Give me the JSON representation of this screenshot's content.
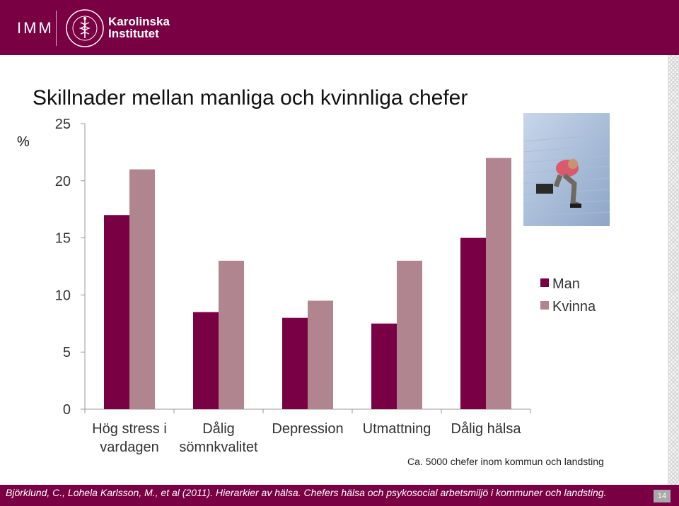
{
  "header": {
    "dept": "IMM",
    "org_line1": "Karolinska",
    "org_line2": "Institutet",
    "seal_text": "KAROLINSKA INSTITUTET ANNO 1810"
  },
  "slide": {
    "title": "Skillnader mellan manliga och kvinnliga chefer",
    "note": "Ca. 5000 chefer inom kommun och landsting",
    "citation": "Björklund, C., Lohela Karlsson, M., et al (2011). Hierarkier av hälsa. Chefers hälsa och psykosocial arbetsmiljö i kommuner och landsting.",
    "page_number": "14",
    "photo_icon": "stressed-man-photo"
  },
  "chart_data": {
    "type": "bar",
    "title": "Skillnader mellan manliga och kvinnliga chefer",
    "ylabel": "%",
    "ylim": [
      0,
      25
    ],
    "yticks": [
      0,
      5,
      10,
      15,
      20,
      25
    ],
    "categories": [
      [
        "Hög stress i",
        "vardagen"
      ],
      [
        "Dålig",
        "sömnkvalitet"
      ],
      [
        "Depression"
      ],
      [
        "Utmattning"
      ],
      [
        "Dålig hälsa"
      ]
    ],
    "series": [
      {
        "name": "Man",
        "color": "#7a0044",
        "values": [
          17,
          8.5,
          8,
          7.5,
          15
        ]
      },
      {
        "name": "Kvinna",
        "color": "#b08590",
        "values": [
          21,
          13,
          9.5,
          13,
          22
        ]
      }
    ],
    "legend_position": "right",
    "grid": false
  }
}
